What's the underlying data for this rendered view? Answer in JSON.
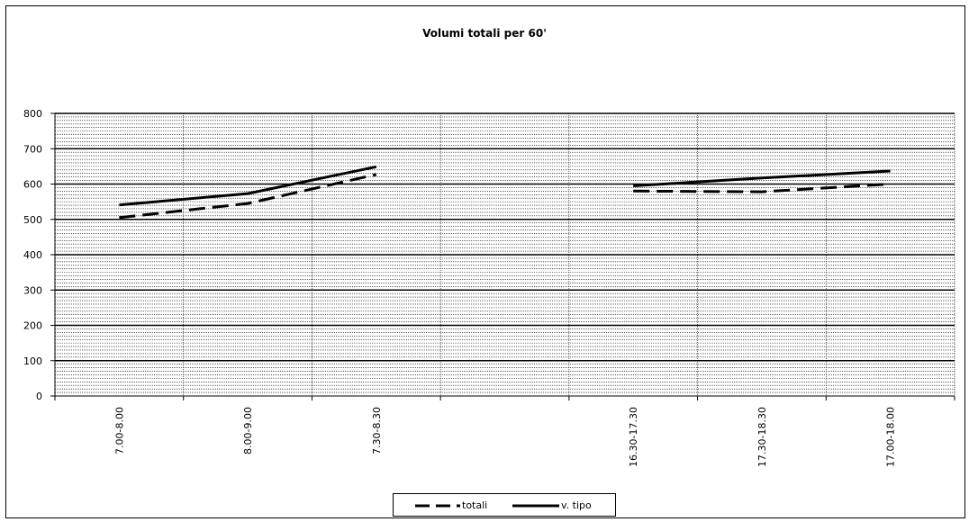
{
  "chart_data": {
    "type": "line",
    "title": "Volumi totali per 60'",
    "categories": [
      "7.00-8.00",
      "8.00-9.00",
      "7.30-8.30",
      "",
      "16.30-17.30",
      "17.30-18.30",
      "17.00-18.00"
    ],
    "ylim": [
      0,
      800
    ],
    "yticks": [
      0,
      100,
      200,
      300,
      400,
      500,
      600,
      700,
      800
    ],
    "grid": true,
    "legend_position": "bottom",
    "series": [
      {
        "name": "totali",
        "style": "dashed",
        "color": "#000000",
        "values": [
          505,
          545,
          627,
          null,
          580,
          578,
          600
        ]
      },
      {
        "name": "v. tipo",
        "style": "solid",
        "color": "#000000",
        "values": [
          541,
          573,
          649,
          null,
          595,
          617,
          637
        ]
      }
    ]
  }
}
